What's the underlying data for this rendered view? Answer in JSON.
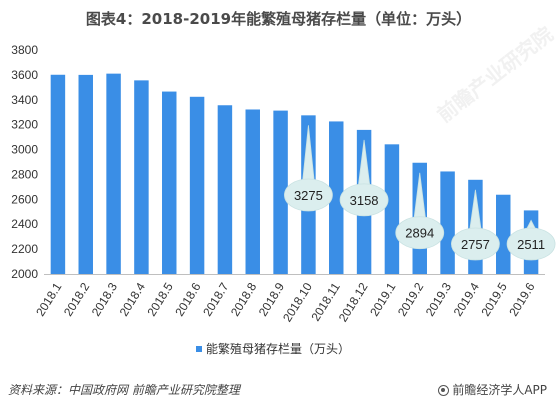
{
  "chart_data": {
    "type": "bar",
    "title": "图表4：2018-2019年能繁殖母猪存栏量（单位：万头）",
    "categories": [
      "2018.1",
      "2018.2",
      "2018.3",
      "2018.4",
      "2018.5",
      "2018.6",
      "2018.7",
      "2018.8",
      "2018.9",
      "2018.10",
      "2018.11",
      "2018.12",
      "2019.1",
      "2019.2",
      "2019.3",
      "2019.4",
      "2019.5",
      "2019.6"
    ],
    "series": [
      {
        "name": "能繁殖母猪存栏量（万头）",
        "values": [
          3601,
          3600,
          3610,
          3556,
          3466,
          3424,
          3356,
          3322,
          3313,
          3275,
          3226,
          3158,
          3042,
          2894,
          2824,
          2757,
          2637,
          2511
        ]
      }
    ],
    "ylim": [
      2000,
      3800
    ],
    "yticks": [
      2000,
      2200,
      2400,
      2600,
      2800,
      3000,
      3200,
      3400,
      3600,
      3800
    ],
    "grid": false,
    "legend": "bottom-center",
    "bar_color": "#3a8ee6",
    "callouts": [
      {
        "category": "2018.10",
        "label": "3275"
      },
      {
        "category": "2018.12",
        "label": "3158"
      },
      {
        "category": "2019.2",
        "label": "2894"
      },
      {
        "category": "2019.4",
        "label": "2757"
      },
      {
        "category": "2019.6",
        "label": "2511"
      }
    ]
  },
  "footer": {
    "source": "资料来源：中国政府网 前瞻产业研究院整理",
    "brand": "前瞻经济学人APP"
  },
  "watermark": "前瞻产业研究院"
}
